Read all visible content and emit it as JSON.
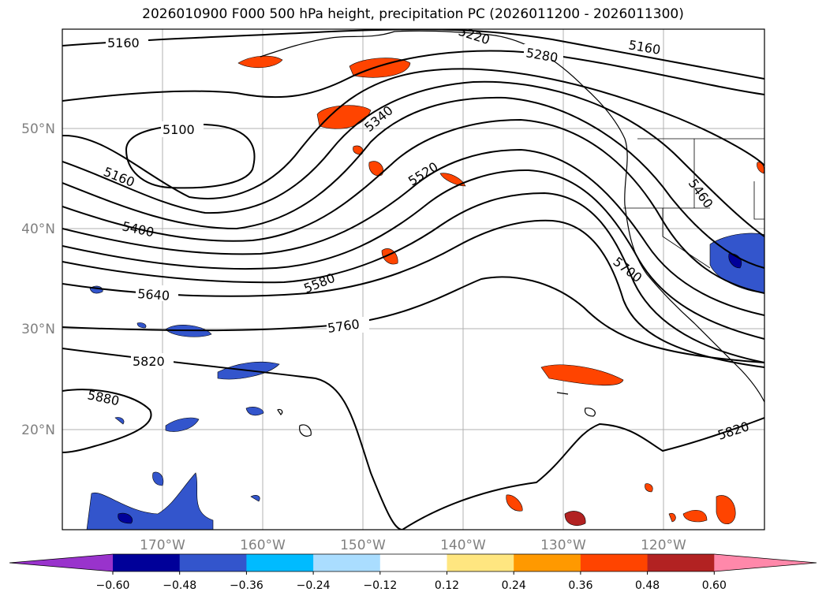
{
  "title": "2026010900 F000 500 hPa height, precipitation PC (2026011200 - 2026011300)",
  "lat_labels": [
    "50°N",
    "40°N",
    "30°N",
    "20°N"
  ],
  "lon_labels": [
    "170°W",
    "160°W",
    "150°W",
    "140°W",
    "130°W",
    "120°W"
  ],
  "contour_labels": [
    "5160",
    "5100",
    "5160",
    "5400",
    "5640",
    "5820",
    "5880",
    "5340",
    "5520",
    "5580",
    "5760",
    "5280",
    "5160",
    "5460",
    "5700",
    "5820",
    "5220"
  ],
  "colorbar": {
    "ticks": [
      "−0.60",
      "−0.48",
      "−0.36",
      "−0.24",
      "−0.12",
      "0.12",
      "0.24",
      "0.36",
      "0.48",
      "0.60"
    ],
    "colors": [
      "#9933cc",
      "#000099",
      "#3355cc",
      "#00bbff",
      "#aaddff",
      "#ffffff",
      "#ffe680",
      "#ff9900",
      "#ff4400",
      "#b22222",
      "#ff88aa"
    ]
  }
}
